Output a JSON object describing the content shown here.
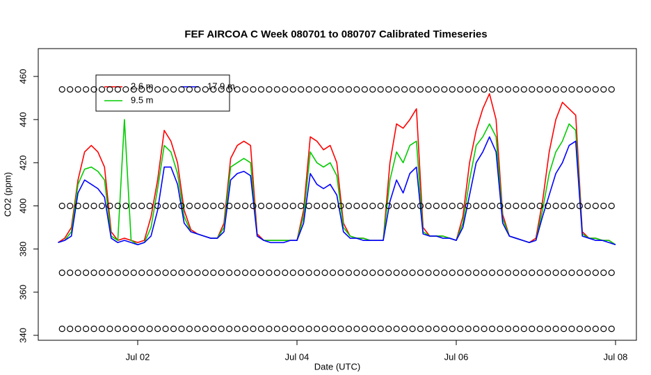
{
  "chart_data": {
    "type": "line",
    "title": "FEF AIRCOA C  Week 080701 to 080707  Calibrated Timeseries",
    "x_label": "Date (UTC)",
    "y_label": "CO2 (ppm)",
    "xlim": [
      0.751,
      8.262
    ],
    "ylim": [
      337.7,
      472.9
    ],
    "xticks": [
      {
        "value": 2,
        "label": "Jul 02"
      },
      {
        "value": 4,
        "label": "Jul 04"
      },
      {
        "value": 6,
        "label": "Jul 06"
      },
      {
        "value": 8,
        "label": "Jul 08"
      }
    ],
    "yticks": [
      340,
      360,
      380,
      400,
      420,
      440,
      460
    ],
    "x": [
      1,
      1.083,
      1.167,
      1.25,
      1.333,
      1.417,
      1.5,
      1.583,
      1.667,
      1.75,
      1.833,
      1.917,
      2,
      2.083,
      2.167,
      2.25,
      2.333,
      2.417,
      2.5,
      2.583,
      2.667,
      2.75,
      2.833,
      2.917,
      3,
      3.083,
      3.167,
      3.25,
      3.333,
      3.417,
      3.5,
      3.583,
      3.667,
      3.75,
      3.833,
      3.917,
      4,
      4.083,
      4.167,
      4.25,
      4.333,
      4.417,
      4.5,
      4.583,
      4.667,
      4.75,
      4.833,
      4.917,
      5,
      5.083,
      5.167,
      5.25,
      5.333,
      5.417,
      5.5,
      5.583,
      5.667,
      5.75,
      5.833,
      5.917,
      6,
      6.083,
      6.167,
      6.25,
      6.333,
      6.417,
      6.5,
      6.583,
      6.667,
      6.75,
      6.833,
      6.917,
      7,
      7.083,
      7.167,
      7.25,
      7.333,
      7.417,
      7.5,
      7.583,
      7.667,
      7.75,
      7.833,
      7.917,
      8
    ],
    "series": [
      {
        "name": "2.6 m",
        "color": "#ff0000",
        "legend_slot": 0,
        "values": [
          383,
          385,
          390,
          412,
          425,
          428,
          425,
          418,
          388,
          384,
          385,
          384,
          383,
          384,
          395,
          412,
          435,
          430,
          420,
          398,
          389,
          387,
          386,
          385,
          385,
          392,
          422,
          428,
          430,
          428,
          387,
          384,
          384,
          384,
          384,
          384,
          384,
          398,
          432,
          430,
          426,
          428,
          420,
          392,
          386,
          385,
          385,
          384,
          384,
          384,
          420,
          438,
          436,
          440,
          445,
          390,
          386,
          386,
          386,
          385,
          384,
          395,
          420,
          435,
          445,
          452,
          440,
          396,
          386,
          385,
          384,
          383,
          385,
          402,
          425,
          440,
          448,
          445,
          442,
          388,
          385,
          385,
          384,
          384,
          382
        ]
      },
      {
        "name": "9.5 m",
        "color": "#00cc00",
        "legend_slot": 2,
        "values": [
          383,
          384,
          388,
          410,
          417,
          418,
          416,
          412,
          386,
          384,
          440,
          384,
          382,
          383,
          390,
          408,
          428,
          425,
          415,
          395,
          388,
          387,
          386,
          385,
          385,
          390,
          418,
          420,
          422,
          420,
          386,
          384,
          384,
          384,
          384,
          384,
          384,
          395,
          425,
          420,
          418,
          420,
          414,
          390,
          386,
          385,
          385,
          384,
          384,
          384,
          412,
          425,
          420,
          428,
          430,
          388,
          386,
          386,
          386,
          385,
          384,
          392,
          412,
          428,
          432,
          438,
          432,
          394,
          386,
          385,
          384,
          383,
          384,
          398,
          415,
          425,
          430,
          438,
          435,
          387,
          385,
          385,
          384,
          384,
          382
        ]
      },
      {
        "name": "17.9 m",
        "color": "#0000ff",
        "legend_slot": 1,
        "values": [
          383,
          384,
          386,
          406,
          412,
          410,
          408,
          404,
          385,
          383,
          384,
          383,
          382,
          383,
          386,
          398,
          418,
          418,
          410,
          392,
          388,
          387,
          386,
          385,
          385,
          388,
          412,
          415,
          416,
          414,
          386,
          384,
          383,
          383,
          383,
          384,
          384,
          392,
          415,
          410,
          408,
          410,
          405,
          388,
          385,
          385,
          384,
          384,
          384,
          384,
          402,
          412,
          406,
          415,
          418,
          387,
          386,
          386,
          385,
          385,
          384,
          390,
          405,
          420,
          425,
          432,
          425,
          392,
          386,
          385,
          384,
          383,
          384,
          395,
          405,
          415,
          420,
          428,
          430,
          386,
          385,
          384,
          384,
          383,
          382
        ]
      }
    ],
    "calibration": {
      "levels": [
        343,
        369,
        400,
        454
      ],
      "x": [
        1.05,
        1.15,
        1.25,
        1.35,
        1.45,
        1.55,
        1.65,
        1.75,
        1.85,
        1.95,
        2.05,
        2.15,
        2.25,
        2.35,
        2.45,
        2.55,
        2.65,
        2.75,
        2.85,
        2.95,
        3.05,
        3.15,
        3.25,
        3.35,
        3.45,
        3.55,
        3.65,
        3.75,
        3.85,
        3.95,
        4.05,
        4.15,
        4.25,
        4.35,
        4.45,
        4.55,
        4.65,
        4.75,
        4.85,
        4.95,
        5.05,
        5.15,
        5.25,
        5.35,
        5.45,
        5.55,
        5.65,
        5.75,
        5.85,
        5.95,
        6.05,
        6.15,
        6.25,
        6.35,
        6.45,
        6.55,
        6.65,
        6.75,
        6.85,
        6.95,
        7.05,
        7.15,
        7.25,
        7.35,
        7.45,
        7.55,
        7.65,
        7.75,
        7.85,
        7.95
      ]
    }
  }
}
